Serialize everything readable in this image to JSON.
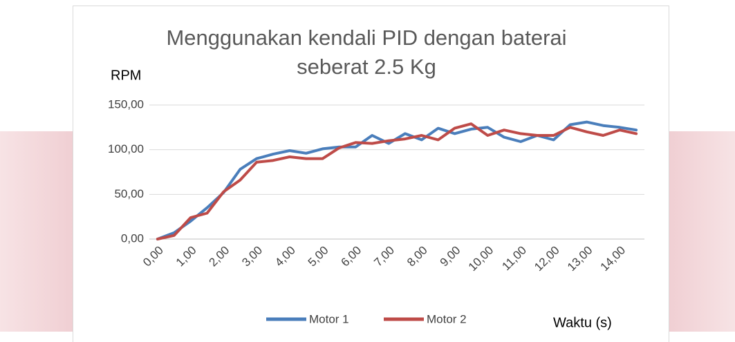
{
  "chart_data": {
    "type": "line",
    "title": "Menggunakan kendali PID dengan baterai seberat 2.5 Kg",
    "y_label": "RPM",
    "x_label": "Waktu (s)",
    "categories": [
      "0,00",
      null,
      "1,00",
      null,
      "2,00",
      null,
      "3,00",
      null,
      "4,00",
      null,
      "5,00",
      null,
      "6,00",
      null,
      "7,00",
      null,
      "8,00",
      null,
      "9,00",
      null,
      "10,00",
      null,
      "11,00",
      null,
      "12,00",
      null,
      "13,00",
      null,
      "14,00",
      null
    ],
    "series": [
      {
        "name": "Motor 1",
        "color": "#4a7ebb",
        "values": [
          0,
          7,
          20,
          35,
          52,
          78,
          90,
          95,
          99,
          96,
          101,
          103,
          103,
          116,
          107,
          118,
          111,
          124,
          118,
          123,
          125,
          114,
          109,
          116,
          111,
          128,
          131,
          127,
          125,
          122
        ]
      },
      {
        "name": "Motor 2",
        "color": "#be4b48",
        "values": [
          0,
          4,
          24,
          29,
          53,
          66,
          86,
          88,
          92,
          90,
          90,
          102,
          108,
          107,
          110,
          112,
          116,
          111,
          124,
          129,
          116,
          122,
          118,
          116,
          116,
          125,
          120,
          116,
          122,
          118
        ]
      }
    ],
    "ylim": [
      0,
      150
    ],
    "yticks": [
      {
        "value": 0,
        "label": "0,00"
      },
      {
        "value": 50,
        "label": "50,00"
      },
      {
        "value": 100,
        "label": "100,00"
      },
      {
        "value": 150,
        "label": "150,00"
      }
    ],
    "grid": true
  }
}
